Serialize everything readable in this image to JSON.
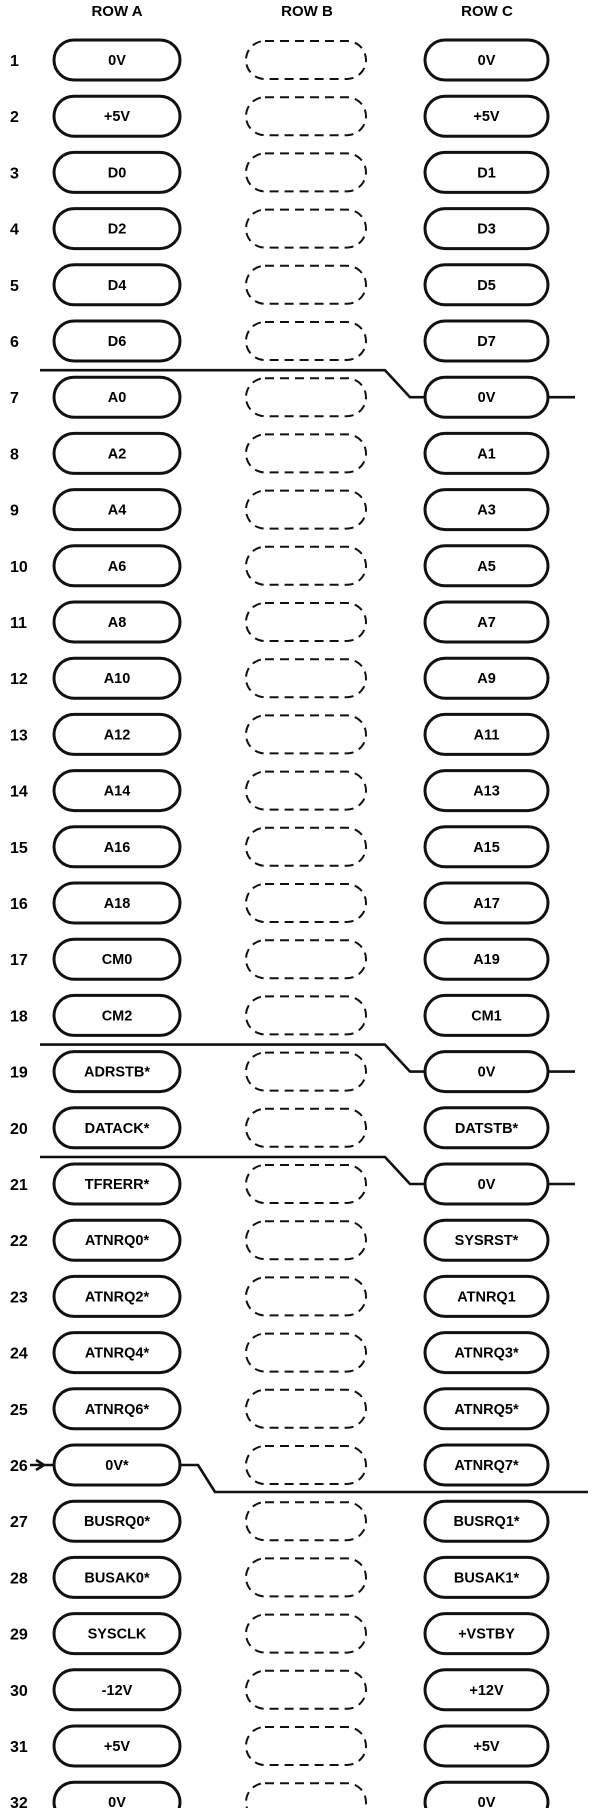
{
  "headers": {
    "row_a": "ROW A",
    "row_b": "ROW B",
    "row_c": "ROW C"
  },
  "rows": [
    {
      "n": "1",
      "a": "0V",
      "c": "0V"
    },
    {
      "n": "2",
      "a": "+5V",
      "c": "+5V"
    },
    {
      "n": "3",
      "a": "D0",
      "c": "D1"
    },
    {
      "n": "4",
      "a": "D2",
      "c": "D3"
    },
    {
      "n": "5",
      "a": "D4",
      "c": "D5"
    },
    {
      "n": "6",
      "a": "D6",
      "c": "D7"
    },
    {
      "n": "7",
      "a": "A0",
      "c": "0V"
    },
    {
      "n": "8",
      "a": "A2",
      "c": "A1"
    },
    {
      "n": "9",
      "a": "A4",
      "c": "A3"
    },
    {
      "n": "10",
      "a": "A6",
      "c": "A5"
    },
    {
      "n": "11",
      "a": "A8",
      "c": "A7"
    },
    {
      "n": "12",
      "a": "A10",
      "c": "A9"
    },
    {
      "n": "13",
      "a": "A12",
      "c": "A11"
    },
    {
      "n": "14",
      "a": "A14",
      "c": "A13"
    },
    {
      "n": "15",
      "a": "A16",
      "c": "A15"
    },
    {
      "n": "16",
      "a": "A18",
      "c": "A17"
    },
    {
      "n": "17",
      "a": "CM0",
      "c": "A19"
    },
    {
      "n": "18",
      "a": "CM2",
      "c": "CM1"
    },
    {
      "n": "19",
      "a": "ADRSTB*",
      "c": "0V"
    },
    {
      "n": "20",
      "a": "DATACK*",
      "c": "DATSTB*"
    },
    {
      "n": "21",
      "a": "TFRERR*",
      "c": "0V"
    },
    {
      "n": "22",
      "a": "ATNRQ0*",
      "c": "SYSRST*"
    },
    {
      "n": "23",
      "a": "ATNRQ2*",
      "c": "ATNRQ1"
    },
    {
      "n": "24",
      "a": "ATNRQ4*",
      "c": "ATNRQ3*"
    },
    {
      "n": "25",
      "a": "ATNRQ6*",
      "c": "ATNRQ5*"
    },
    {
      "n": "26",
      "a": "0V*",
      "c": "ATNRQ7*"
    },
    {
      "n": "27",
      "a": "BUSRQ0*",
      "c": "BUSRQ1*"
    },
    {
      "n": "28",
      "a": "BUSAK0*",
      "c": "BUSAK1*"
    },
    {
      "n": "29",
      "a": "SYSCLK",
      "c": "+VSTBY"
    },
    {
      "n": "30",
      "a": "-12V",
      "c": "+12V"
    },
    {
      "n": "31",
      "a": "+5V",
      "c": "+5V"
    },
    {
      "n": "32",
      "a": "0V",
      "c": "0V"
    }
  ]
}
